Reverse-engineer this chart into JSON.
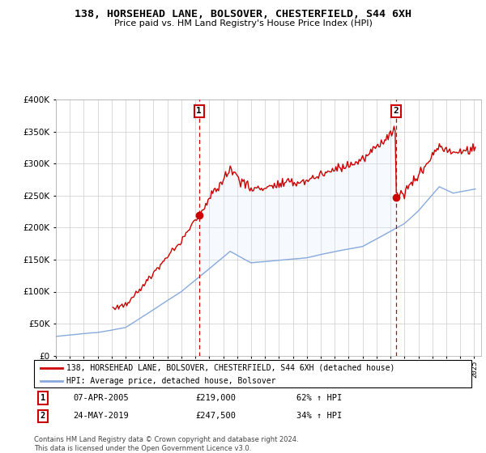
{
  "title": "138, HORSEHEAD LANE, BOLSOVER, CHESTERFIELD, S44 6XH",
  "subtitle": "Price paid vs. HM Land Registry's House Price Index (HPI)",
  "property_label": "138, HORSEHEAD LANE, BOLSOVER, CHESTERFIELD, S44 6XH (detached house)",
  "hpi_label": "HPI: Average price, detached house, Bolsover",
  "sale1_date": "07-APR-2005",
  "sale1_price": 219000,
  "sale1_hpi": "62% ↑ HPI",
  "sale1_year": 2005.27,
  "sale2_date": "24-MAY-2019",
  "sale2_price": 247500,
  "sale2_hpi": "34% ↑ HPI",
  "sale2_year": 2019.38,
  "footnote": "Contains HM Land Registry data © Crown copyright and database right 2024.\nThis data is licensed under the Open Government Licence v3.0.",
  "property_color": "#cc0000",
  "hpi_color": "#88aadd",
  "shade_color": "#ddeeff",
  "marker_color": "#cc0000",
  "background_color": "#ffffff",
  "grid_color": "#cccccc",
  "ylim_min": 0,
  "ylim_max": 400000,
  "xlim_min": 1995.0,
  "xlim_max": 2025.5
}
